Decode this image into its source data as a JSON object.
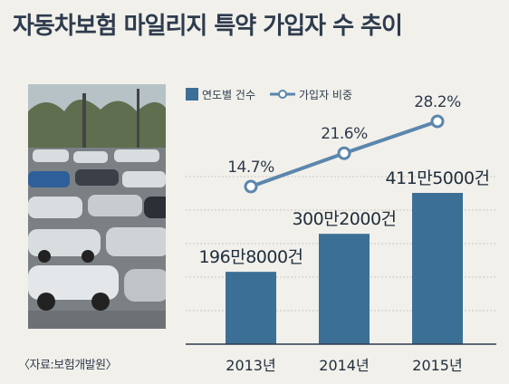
{
  "title": "자동차보험 마일리지 특약 가입자 수 추이",
  "source": "〈자료:보험개발원〉",
  "photo": {
    "icon": "parking-lot-cars-photo"
  },
  "colors": {
    "bar": "#3c6f95",
    "line": "#5b86ad",
    "text": "#2e3b4e",
    "background": "#f1f0ea"
  },
  "chart_data": {
    "type": "bar+line",
    "categories": [
      "2013년",
      "2014년",
      "2015년"
    ],
    "legend": {
      "position": "top",
      "bar_label": "연도별 건수",
      "line_label": "가입자 비중"
    },
    "series": [
      {
        "name": "연도별 건수",
        "type": "bar",
        "values": [
          1968000,
          3002000,
          4115000
        ],
        "labels": [
          "196만8000건",
          "300만2000건",
          "411만5000건"
        ]
      },
      {
        "name": "가입자 비중",
        "type": "line",
        "values": [
          14.7,
          21.6,
          28.2
        ],
        "labels": [
          "14.7%",
          "21.6%",
          "28.2%"
        ]
      }
    ],
    "grid": true
  }
}
